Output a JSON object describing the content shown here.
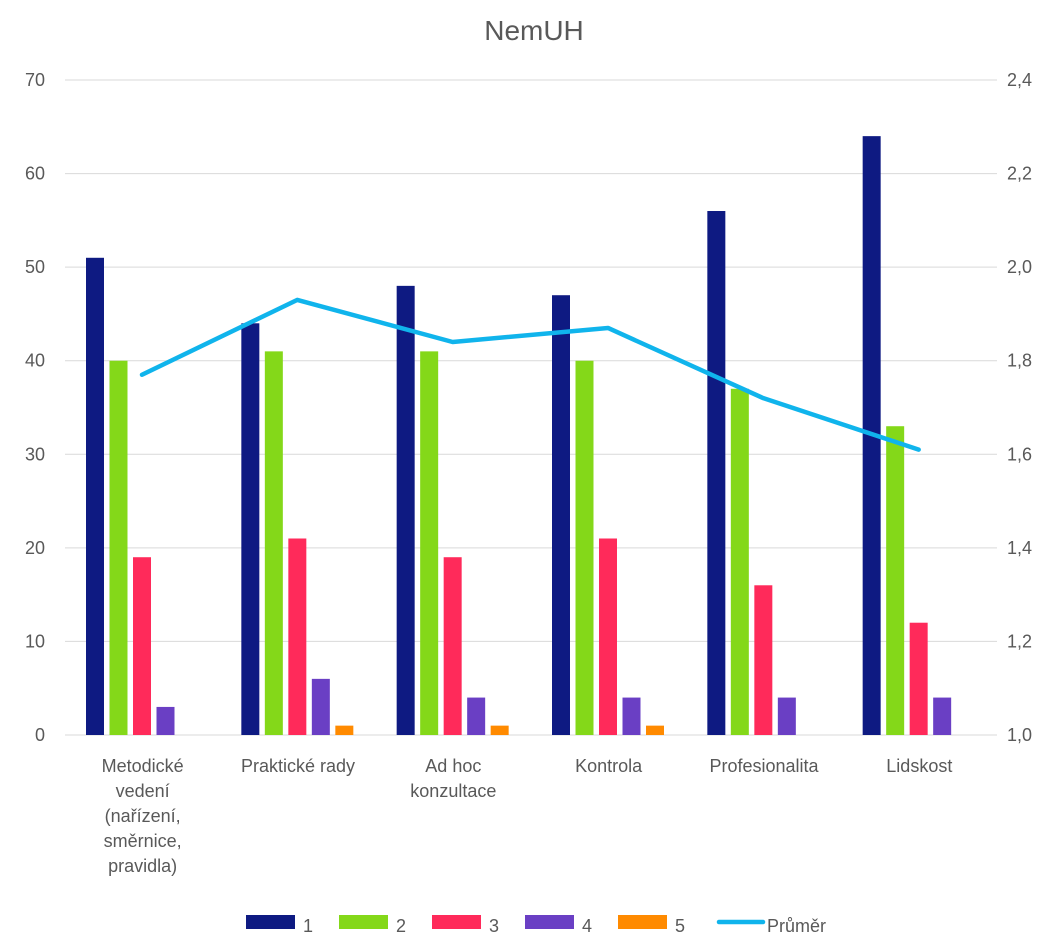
{
  "chart_data": {
    "type": "bar",
    "title": "NemUH",
    "categories": [
      [
        "Metodické",
        "vedení",
        "(nařízení,",
        "směrnice,",
        "pravidla)"
      ],
      [
        "Praktické rady"
      ],
      [
        "Ad hoc",
        "konzultace"
      ],
      [
        "Kontrola"
      ],
      [
        "Profesionalita"
      ],
      [
        "Lidskost"
      ]
    ],
    "series": [
      {
        "name": "1",
        "color": "#0E1A82",
        "values": [
          51,
          44,
          48,
          47,
          56,
          64
        ]
      },
      {
        "name": "2",
        "color": "#84D819",
        "values": [
          40,
          41,
          41,
          40,
          37,
          33
        ]
      },
      {
        "name": "3",
        "color": "#FF2A5A",
        "values": [
          19,
          21,
          19,
          21,
          16,
          12
        ]
      },
      {
        "name": "4",
        "color": "#6A3FC4",
        "values": [
          3,
          6,
          4,
          4,
          4,
          4
        ]
      },
      {
        "name": "5",
        "color": "#FF8A00",
        "values": [
          0,
          1,
          1,
          1,
          0,
          0
        ]
      }
    ],
    "line_series": {
      "name": "Průměr",
      "color": "#10B4EC",
      "axis": "right",
      "values": [
        1.77,
        1.93,
        1.84,
        1.87,
        1.72,
        1.61
      ]
    },
    "ylim": [
      0,
      70
    ],
    "y_ticks": [
      "0",
      "10",
      "20",
      "30",
      "40",
      "50",
      "60",
      "70"
    ],
    "y2lim": [
      1.0,
      2.4
    ],
    "y2_ticks": [
      "1,0",
      "1,2",
      "1,4",
      "1,6",
      "1,8",
      "2,0",
      "2,2",
      "2,4"
    ],
    "grid": true,
    "legend_position": "bottom"
  }
}
